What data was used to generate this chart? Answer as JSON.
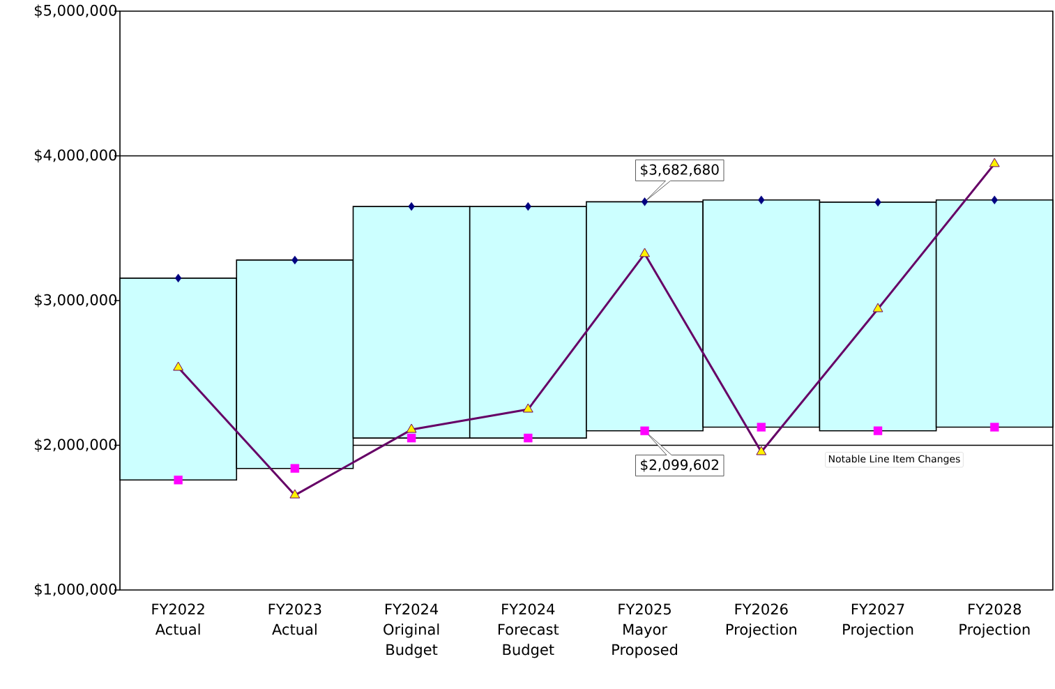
{
  "chart_data": {
    "type": "bar",
    "categories": [
      "FY2022 Actual",
      "FY2023 Actual",
      "FY2024 Original Budget",
      "FY2024 Forecast Budget",
      "FY2025 Mayor Proposed",
      "FY2026 Projection",
      "FY2027 Projection",
      "FY2028 Projection"
    ],
    "series": [
      {
        "type": "bar",
        "color": "#ccffff",
        "base": [
          1760000,
          1840000,
          2050000,
          2050000,
          2099602,
          2125000,
          2100000,
          2125000
        ],
        "values": [
          1395000,
          1440000,
          1600000,
          1600000,
          1583078,
          1570000,
          1580000,
          1570000
        ]
      },
      {
        "type": "scatter",
        "marker": "diamond",
        "color": "#000080",
        "values": [
          3155000,
          3280000,
          3650000,
          3650000,
          3682680,
          3695000,
          3680000,
          3695000
        ]
      },
      {
        "type": "scatter",
        "marker": "square",
        "color": "#ff00ff",
        "values": [
          1760000,
          1840000,
          2050000,
          2050000,
          2099602,
          2125000,
          2100000,
          2125000
        ]
      },
      {
        "type": "line",
        "marker": "triangle",
        "color": "#660066",
        "values": [
          2537000,
          1655000,
          2108000,
          2248000,
          3323000,
          1954000,
          2942000,
          3945000
        ]
      }
    ],
    "ylim": [
      1000000,
      5000000
    ],
    "yticks": [
      {
        "value": 1000000,
        "label": "$1,000,000"
      },
      {
        "value": 2000000,
        "label": "$2,000,000"
      },
      {
        "value": 3000000,
        "label": "$3,000,000"
      },
      {
        "value": 4000000,
        "label": "$4,000,000"
      },
      {
        "value": 5000000,
        "label": "$5,000,000"
      }
    ],
    "ref_lines": [
      {
        "axis": "y",
        "value": 2000000,
        "color": "#000000"
      },
      {
        "axis": "y",
        "value": 4000000,
        "color": "#000000"
      }
    ],
    "annotations": [
      {
        "text": "$3,682,680",
        "y": 3682680
      },
      {
        "text": "$2,099,602",
        "y": 2099602
      },
      "Notable Line Item Changes"
    ]
  }
}
